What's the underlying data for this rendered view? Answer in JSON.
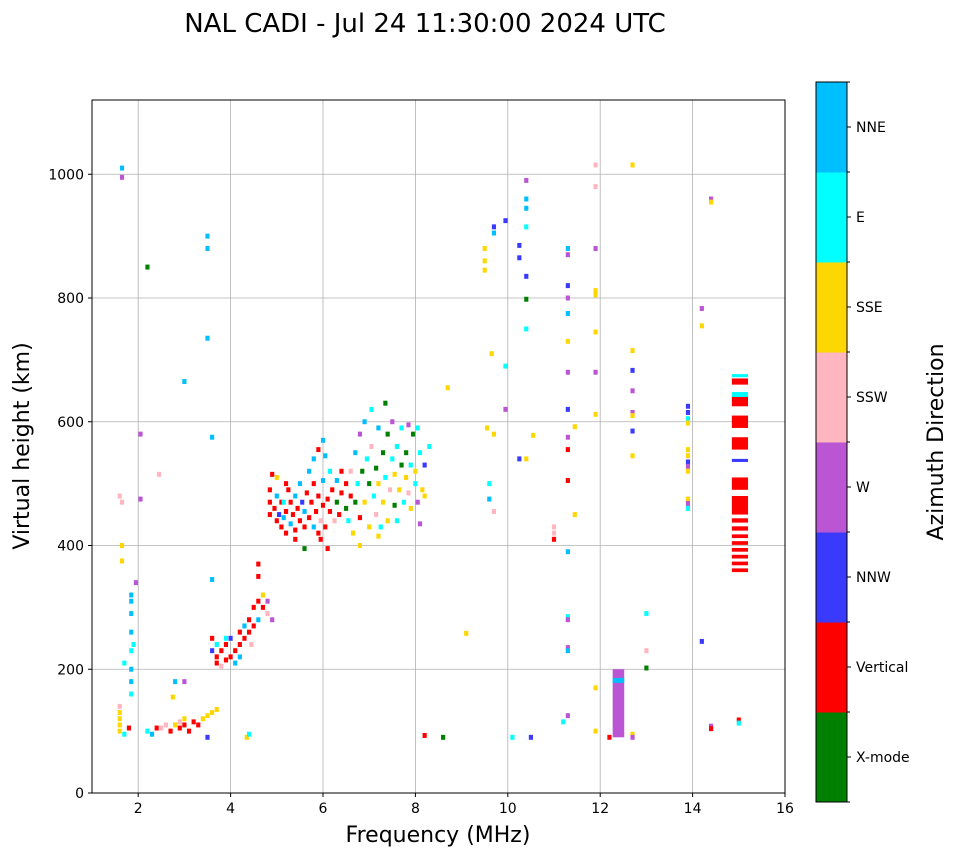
{
  "chart_data": {
    "type": "scatter",
    "title": "NAL CADI - Jul 24 11:30:00 2024 UTC",
    "xlabel": "Frequency (MHz)",
    "ylabel": "Virtual height (km)",
    "xlim": [
      1,
      16
    ],
    "ylim": [
      0,
      1120
    ],
    "xticks": [
      2,
      4,
      6,
      8,
      10,
      12,
      14,
      16
    ],
    "yticks": [
      0,
      200,
      400,
      600,
      800,
      1000
    ],
    "grid": true,
    "colorbar": {
      "label": "Azimuth Direction",
      "categories": [
        {
          "name": "X-mode",
          "color": "#008000"
        },
        {
          "name": "Vertical",
          "color": "#ff0000"
        },
        {
          "name": "NNW",
          "color": "#3a3aff"
        },
        {
          "name": "W",
          "color": "#ba55d3"
        },
        {
          "name": "SSW",
          "color": "#ffb6c1"
        },
        {
          "name": "SSE",
          "color": "#ffd700"
        },
        {
          "name": "E",
          "color": "#00ffff"
        },
        {
          "name": "NNE",
          "color": "#00bfff"
        }
      ]
    },
    "cell_size": {
      "freq_mhz": 0.09,
      "height_km": 8
    },
    "points_format": "[frequency_mhz, virtual_height_km, category_index]",
    "points": [
      [
        1.6,
        100,
        5
      ],
      [
        1.6,
        110,
        5
      ],
      [
        1.6,
        120,
        5
      ],
      [
        1.6,
        130,
        5
      ],
      [
        1.6,
        140,
        4
      ],
      [
        1.7,
        95,
        6
      ],
      [
        1.8,
        105,
        1
      ],
      [
        2.2,
        100,
        6
      ],
      [
        2.3,
        95,
        7
      ],
      [
        2.4,
        105,
        1
      ],
      [
        2.5,
        105,
        4
      ],
      [
        2.6,
        110,
        4
      ],
      [
        2.7,
        100,
        1
      ],
      [
        2.8,
        110,
        5
      ],
      [
        2.9,
        105,
        1
      ],
      [
        3.0,
        110,
        1
      ],
      [
        3.1,
        100,
        1
      ],
      [
        3.2,
        115,
        1
      ],
      [
        3.3,
        110,
        1
      ],
      [
        3.4,
        120,
        5
      ],
      [
        3.5,
        125,
        5
      ],
      [
        3.6,
        130,
        5
      ],
      [
        3.7,
        135,
        5
      ],
      [
        3.5,
        90,
        2
      ],
      [
        4.35,
        90,
        5
      ],
      [
        4.4,
        95,
        6
      ],
      [
        2.9,
        115,
        4
      ],
      [
        3.0,
        120,
        5
      ],
      [
        2.75,
        155,
        5
      ],
      [
        2.8,
        180,
        7
      ],
      [
        3.0,
        180,
        3
      ],
      [
        1.85,
        160,
        6
      ],
      [
        1.85,
        180,
        7
      ],
      [
        1.85,
        200,
        7
      ],
      [
        1.85,
        230,
        6
      ],
      [
        1.85,
        260,
        7
      ],
      [
        1.85,
        290,
        7
      ],
      [
        1.85,
        310,
        7
      ],
      [
        1.85,
        320,
        7
      ],
      [
        1.9,
        240,
        6
      ],
      [
        1.95,
        340,
        3
      ],
      [
        1.7,
        210,
        6
      ],
      [
        1.65,
        375,
        5
      ],
      [
        1.65,
        400,
        5
      ],
      [
        1.6,
        480,
        4
      ],
      [
        1.65,
        470,
        4
      ],
      [
        2.05,
        475,
        3
      ],
      [
        2.05,
        580,
        3
      ],
      [
        2.2,
        850,
        0
      ],
      [
        1.65,
        1010,
        7
      ],
      [
        1.65,
        995,
        3
      ],
      [
        3.5,
        900,
        7
      ],
      [
        3.5,
        880,
        7
      ],
      [
        3.5,
        735,
        7
      ],
      [
        3.0,
        665,
        7
      ],
      [
        3.6,
        575,
        7
      ],
      [
        3.6,
        345,
        7
      ],
      [
        2.45,
        515,
        4
      ],
      [
        3.7,
        210,
        1
      ],
      [
        3.7,
        220,
        1
      ],
      [
        3.8,
        230,
        1
      ],
      [
        3.8,
        205,
        4
      ],
      [
        3.9,
        215,
        1
      ],
      [
        3.9,
        240,
        1
      ],
      [
        4.0,
        220,
        1
      ],
      [
        4.0,
        250,
        2
      ],
      [
        4.1,
        230,
        1
      ],
      [
        4.1,
        210,
        7
      ],
      [
        4.2,
        240,
        1
      ],
      [
        4.2,
        260,
        1
      ],
      [
        4.3,
        250,
        1
      ],
      [
        4.3,
        270,
        7
      ],
      [
        4.4,
        260,
        1
      ],
      [
        4.4,
        280,
        1
      ],
      [
        4.5,
        270,
        1
      ],
      [
        4.5,
        300,
        1
      ],
      [
        4.6,
        280,
        7
      ],
      [
        4.6,
        310,
        1
      ],
      [
        4.7,
        320,
        5
      ],
      [
        4.7,
        300,
        1
      ],
      [
        4.8,
        310,
        3
      ],
      [
        4.8,
        290,
        4
      ],
      [
        4.6,
        350,
        1
      ],
      [
        4.6,
        370,
        1
      ],
      [
        4.9,
        280,
        3
      ],
      [
        3.6,
        250,
        1
      ],
      [
        3.7,
        240,
        6
      ],
      [
        3.9,
        250,
        6
      ],
      [
        3.6,
        230,
        2
      ],
      [
        4.45,
        240,
        4
      ],
      [
        4.2,
        220,
        7
      ],
      [
        4.85,
        450,
        1
      ],
      [
        4.85,
        470,
        1
      ],
      [
        4.85,
        490,
        1
      ],
      [
        4.9,
        515,
        1
      ],
      [
        4.95,
        460,
        1
      ],
      [
        5.0,
        440,
        1
      ],
      [
        5.0,
        480,
        7
      ],
      [
        5.05,
        450,
        2
      ],
      [
        5.1,
        430,
        1
      ],
      [
        5.1,
        470,
        1
      ],
      [
        5.15,
        445,
        7
      ],
      [
        5.2,
        420,
        1
      ],
      [
        5.2,
        455,
        1
      ],
      [
        5.25,
        490,
        1
      ],
      [
        5.3,
        435,
        7
      ],
      [
        5.3,
        470,
        1
      ],
      [
        5.35,
        450,
        1
      ],
      [
        5.4,
        425,
        1
      ],
      [
        5.4,
        480,
        7
      ],
      [
        5.45,
        460,
        1
      ],
      [
        5.5,
        440,
        1
      ],
      [
        5.5,
        500,
        7
      ],
      [
        5.55,
        470,
        2
      ],
      [
        5.6,
        430,
        1
      ],
      [
        5.6,
        455,
        7
      ],
      [
        5.65,
        485,
        1
      ],
      [
        5.7,
        445,
        1
      ],
      [
        5.7,
        520,
        7
      ],
      [
        5.75,
        470,
        1
      ],
      [
        5.8,
        430,
        7
      ],
      [
        5.8,
        500,
        1
      ],
      [
        5.85,
        455,
        1
      ],
      [
        5.9,
        420,
        1
      ],
      [
        5.9,
        480,
        1
      ],
      [
        5.95,
        440,
        4
      ],
      [
        6.0,
        465,
        1
      ],
      [
        6.0,
        505,
        7
      ],
      [
        6.05,
        430,
        1
      ],
      [
        6.05,
        545,
        7
      ],
      [
        6.1,
        475,
        1
      ],
      [
        6.1,
        395,
        1
      ],
      [
        6.15,
        455,
        1
      ],
      [
        6.15,
        520,
        6
      ],
      [
        6.2,
        490,
        1
      ],
      [
        6.25,
        440,
        4
      ],
      [
        6.3,
        470,
        0
      ],
      [
        6.3,
        505,
        7
      ],
      [
        6.35,
        450,
        1
      ],
      [
        6.4,
        485,
        1
      ],
      [
        6.4,
        520,
        1
      ],
      [
        6.0,
        570,
        7
      ],
      [
        5.95,
        410,
        1
      ],
      [
        5.0,
        510,
        5
      ],
      [
        5.2,
        500,
        1
      ],
      [
        5.4,
        410,
        1
      ],
      [
        5.6,
        395,
        0
      ],
      [
        5.15,
        470,
        6
      ],
      [
        5.8,
        540,
        7
      ],
      [
        5.9,
        555,
        1
      ],
      [
        6.5,
        460,
        0
      ],
      [
        6.5,
        500,
        1
      ],
      [
        6.55,
        440,
        6
      ],
      [
        6.6,
        520,
        4
      ],
      [
        6.6,
        480,
        1
      ],
      [
        6.65,
        420,
        5
      ],
      [
        6.7,
        550,
        7
      ],
      [
        6.7,
        470,
        0
      ],
      [
        6.75,
        500,
        6
      ],
      [
        6.8,
        445,
        1
      ],
      [
        6.8,
        580,
        3
      ],
      [
        6.85,
        520,
        0
      ],
      [
        6.9,
        470,
        5
      ],
      [
        6.9,
        600,
        7
      ],
      [
        6.95,
        540,
        6
      ],
      [
        7.0,
        430,
        5
      ],
      [
        7.0,
        500,
        0
      ],
      [
        7.05,
        560,
        4
      ],
      [
        7.05,
        620,
        6
      ],
      [
        7.1,
        480,
        6
      ],
      [
        7.15,
        525,
        0
      ],
      [
        7.15,
        450,
        4
      ],
      [
        7.2,
        590,
        7
      ],
      [
        7.2,
        500,
        5
      ],
      [
        7.25,
        430,
        6
      ],
      [
        7.3,
        550,
        0
      ],
      [
        7.3,
        470,
        5
      ],
      [
        7.35,
        510,
        6
      ],
      [
        7.35,
        630,
        0
      ],
      [
        7.4,
        580,
        0
      ],
      [
        7.4,
        440,
        5
      ],
      [
        7.45,
        490,
        4
      ],
      [
        7.5,
        540,
        6
      ],
      [
        7.5,
        600,
        3
      ],
      [
        7.55,
        465,
        0
      ],
      [
        7.55,
        515,
        5
      ],
      [
        7.6,
        560,
        6
      ],
      [
        7.6,
        440,
        6
      ],
      [
        7.65,
        490,
        5
      ],
      [
        7.7,
        530,
        0
      ],
      [
        7.7,
        590,
        6
      ],
      [
        7.75,
        470,
        6
      ],
      [
        7.8,
        510,
        5
      ],
      [
        7.8,
        550,
        0
      ],
      [
        7.85,
        485,
        4
      ],
      [
        7.85,
        595,
        3
      ],
      [
        7.9,
        530,
        6
      ],
      [
        7.9,
        460,
        5
      ],
      [
        7.95,
        580,
        0
      ],
      [
        8.0,
        500,
        6
      ],
      [
        8.0,
        520,
        5
      ],
      [
        8.05,
        470,
        3
      ],
      [
        8.1,
        550,
        6
      ],
      [
        8.15,
        490,
        5
      ],
      [
        8.2,
        480,
        5
      ],
      [
        8.2,
        530,
        2
      ],
      [
        8.3,
        560,
        6
      ],
      [
        8.1,
        435,
        3
      ],
      [
        8.05,
        590,
        6
      ],
      [
        7.2,
        415,
        5
      ],
      [
        6.8,
        400,
        5
      ],
      [
        8.2,
        93,
        1
      ],
      [
        8.6,
        90,
        0
      ],
      [
        8.7,
        655,
        5
      ],
      [
        9.1,
        258,
        5
      ],
      [
        9.5,
        880,
        5
      ],
      [
        9.5,
        860,
        5
      ],
      [
        9.5,
        845,
        5
      ],
      [
        9.55,
        590,
        5
      ],
      [
        9.6,
        500,
        6
      ],
      [
        9.6,
        475,
        7
      ],
      [
        9.65,
        710,
        5
      ],
      [
        9.7,
        905,
        7
      ],
      [
        9.7,
        915,
        2
      ],
      [
        9.7,
        580,
        5
      ],
      [
        9.7,
        455,
        4
      ],
      [
        9.95,
        690,
        6
      ],
      [
        9.95,
        925,
        2
      ],
      [
        9.95,
        620,
        3
      ],
      [
        10.1,
        90,
        6
      ],
      [
        10.25,
        885,
        2
      ],
      [
        10.25,
        865,
        2
      ],
      [
        10.25,
        540,
        2
      ],
      [
        10.4,
        990,
        3
      ],
      [
        10.4,
        960,
        7
      ],
      [
        10.4,
        945,
        7
      ],
      [
        10.4,
        915,
        6
      ],
      [
        10.4,
        835,
        2
      ],
      [
        10.4,
        798,
        0
      ],
      [
        10.4,
        750,
        6
      ],
      [
        10.4,
        540,
        5
      ],
      [
        10.5,
        90,
        2
      ],
      [
        10.55,
        578,
        5
      ],
      [
        11.0,
        430,
        4
      ],
      [
        11.0,
        420,
        4
      ],
      [
        11.0,
        410,
        1
      ],
      [
        11.2,
        115,
        6
      ],
      [
        11.3,
        880,
        7
      ],
      [
        11.3,
        870,
        3
      ],
      [
        11.3,
        820,
        2
      ],
      [
        11.3,
        800,
        3
      ],
      [
        11.3,
        775,
        7
      ],
      [
        11.3,
        730,
        5
      ],
      [
        11.3,
        680,
        3
      ],
      [
        11.3,
        620,
        2
      ],
      [
        11.3,
        575,
        3
      ],
      [
        11.3,
        555,
        1
      ],
      [
        11.3,
        505,
        1
      ],
      [
        11.3,
        390,
        7
      ],
      [
        11.3,
        285,
        6
      ],
      [
        11.3,
        280,
        3
      ],
      [
        11.3,
        235,
        3
      ],
      [
        11.3,
        230,
        7
      ],
      [
        11.3,
        125,
        3
      ],
      [
        11.45,
        592,
        5
      ],
      [
        11.45,
        450,
        5
      ],
      [
        11.9,
        1015,
        4
      ],
      [
        11.9,
        980,
        4
      ],
      [
        11.9,
        880,
        3
      ],
      [
        11.9,
        812,
        5
      ],
      [
        11.9,
        805,
        5
      ],
      [
        11.9,
        745,
        5
      ],
      [
        11.9,
        680,
        3
      ],
      [
        11.9,
        612,
        5
      ],
      [
        11.9,
        170,
        5
      ],
      [
        11.9,
        100,
        5
      ],
      [
        12.2,
        90,
        1
      ],
      [
        12.7,
        1015,
        5
      ],
      [
        12.7,
        715,
        5
      ],
      [
        12.7,
        683,
        2
      ],
      [
        12.7,
        650,
        3
      ],
      [
        12.7,
        615,
        3
      ],
      [
        12.7,
        610,
        5
      ],
      [
        12.7,
        585,
        2
      ],
      [
        12.7,
        545,
        5
      ],
      [
        12.7,
        95,
        5
      ],
      [
        12.7,
        90,
        3
      ],
      [
        13.0,
        290,
        6
      ],
      [
        13.0,
        230,
        4
      ],
      [
        13.0,
        202,
        0
      ],
      [
        14.2,
        245,
        2
      ],
      [
        14.2,
        783,
        3
      ],
      [
        14.2,
        755,
        5
      ],
      [
        14.4,
        960,
        3
      ],
      [
        14.4,
        955,
        5
      ],
      [
        14.4,
        108,
        3
      ],
      [
        14.4,
        104,
        1
      ],
      [
        15.0,
        118,
        1
      ],
      [
        15.0,
        113,
        6
      ],
      [
        13.9,
        625,
        2
      ],
      [
        13.9,
        615,
        2
      ],
      [
        13.9,
        605,
        6
      ],
      [
        13.9,
        598,
        5
      ],
      [
        13.9,
        555,
        5
      ],
      [
        13.9,
        545,
        5
      ],
      [
        13.9,
        535,
        2
      ],
      [
        13.9,
        528,
        3
      ],
      [
        13.9,
        520,
        5
      ],
      [
        13.9,
        475,
        5
      ],
      [
        13.9,
        468,
        3
      ],
      [
        13.9,
        460,
        6
      ]
    ],
    "bars_format": "[freq_start_mhz, freq_end_mhz, height_start_km, height_end_km, category_index]",
    "bars": [
      [
        12.27,
        12.52,
        90,
        200,
        3
      ],
      [
        12.27,
        12.52,
        178,
        186,
        7
      ],
      [
        14.85,
        15.2,
        357,
        363,
        1
      ],
      [
        14.85,
        15.2,
        368,
        374,
        1
      ],
      [
        14.85,
        15.2,
        379,
        385,
        1
      ],
      [
        14.85,
        15.2,
        390,
        396,
        1
      ],
      [
        14.85,
        15.2,
        401,
        407,
        1
      ],
      [
        14.85,
        15.2,
        412,
        418,
        1
      ],
      [
        14.85,
        15.2,
        424,
        431,
        1
      ],
      [
        14.85,
        15.2,
        437,
        444,
        1
      ],
      [
        14.85,
        15.2,
        450,
        480,
        1
      ],
      [
        14.85,
        15.2,
        490,
        510,
        1
      ],
      [
        14.85,
        15.2,
        535,
        540,
        2
      ],
      [
        14.85,
        15.2,
        555,
        575,
        1
      ],
      [
        14.85,
        15.2,
        590,
        610,
        1
      ],
      [
        14.85,
        15.2,
        625,
        640,
        1
      ],
      [
        14.85,
        15.2,
        640,
        648,
        6
      ],
      [
        14.85,
        15.2,
        660,
        670,
        1
      ],
      [
        14.85,
        15.2,
        672,
        677,
        6
      ]
    ]
  }
}
